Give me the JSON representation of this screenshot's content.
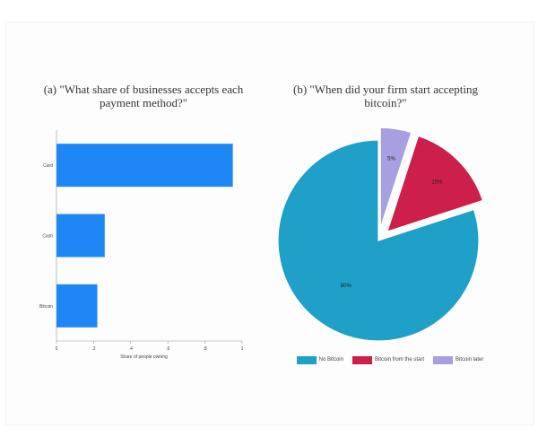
{
  "chart_data": [
    {
      "type": "bar",
      "orientation": "horizontal",
      "title": "(a) \"What share of businesses accepts each payment method?\"",
      "categories": [
        "Card",
        "Cash",
        "Bitcoin"
      ],
      "values": [
        0.95,
        0.26,
        0.22
      ],
      "xlabel": "Share of people owning",
      "ylabel": "",
      "xlim": [
        0,
        1
      ],
      "xticks": [
        "0",
        ".2",
        ".4",
        ".6",
        ".8",
        "1"
      ],
      "grid": false,
      "color": "#1f87f5"
    },
    {
      "type": "pie",
      "title": "(b) \"When did your firm start accepting bitcoin?\"",
      "slices": [
        {
          "label": "No Bitcoin",
          "value": 80,
          "text": "80%",
          "color": "#1ea0c8",
          "explode": false
        },
        {
          "label": "Bitcoin from the start",
          "value": 15,
          "text": "15%",
          "color": "#cc1f4a",
          "explode": true
        },
        {
          "label": "Bitcoin later",
          "value": 5,
          "text": "5%",
          "color": "#a79fe0",
          "explode": true
        }
      ],
      "legend_position": "bottom"
    }
  ]
}
